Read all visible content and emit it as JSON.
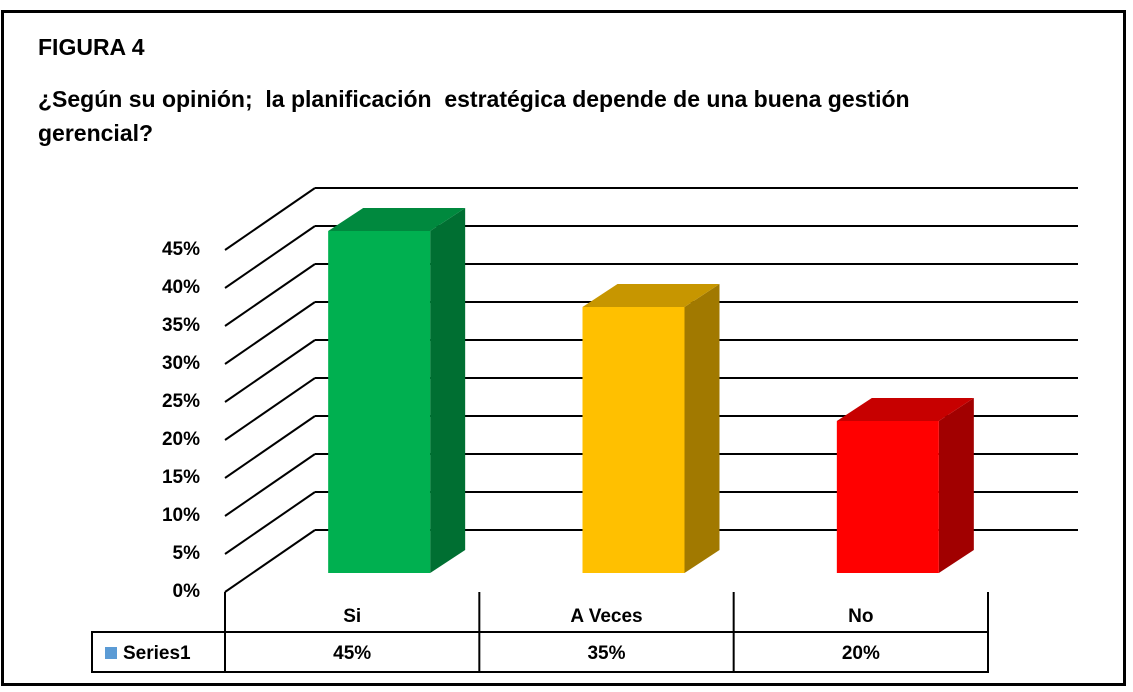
{
  "chart_data": {
    "type": "bar3d",
    "title": "FIGURA 4",
    "subtitle": "¿Según su opinión;  la planificación  estratégica depende de una buena gestión gerencial?",
    "categories": [
      "Si",
      "A Veces",
      "No"
    ],
    "series": [
      {
        "name": "Series1",
        "color": "#5b9bd5",
        "values": [
          45,
          35,
          20
        ],
        "value_labels": [
          "45%",
          "35%",
          "20%"
        ]
      }
    ],
    "colors": [
      "#00b050",
      "#ffc000",
      "#ff0000"
    ],
    "ylim": [
      0,
      45
    ],
    "yticks": [
      {
        "value": 0,
        "label": "0%"
      },
      {
        "value": 5,
        "label": "5%"
      },
      {
        "value": 10,
        "label": "10%"
      },
      {
        "value": 15,
        "label": "15%"
      },
      {
        "value": 20,
        "label": "20%"
      },
      {
        "value": 25,
        "label": "25%"
      },
      {
        "value": 30,
        "label": "30%"
      },
      {
        "value": 35,
        "label": "35%"
      },
      {
        "value": 40,
        "label": "40%"
      },
      {
        "value": 45,
        "label": "45%"
      }
    ],
    "grid": true
  }
}
